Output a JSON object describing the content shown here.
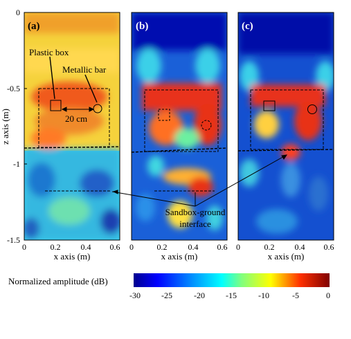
{
  "panels": [
    {
      "label": "(a)",
      "xticks": [
        "0",
        "0.2",
        "0.4",
        "0.6"
      ],
      "xlabel": "x axis (m)"
    },
    {
      "label": "(b)",
      "xticks": [
        "0",
        "0.2",
        "0.4",
        "0.6"
      ],
      "xlabel": "x axis (m)"
    },
    {
      "label": "(c)",
      "xticks": [
        "0",
        "0.2",
        "0.4",
        "0.6"
      ],
      "xlabel": "x axis (m)"
    }
  ],
  "y_axis": {
    "label": "z axis (m)",
    "ticks": [
      "0",
      "-0.5",
      "-1",
      "-1.5"
    ]
  },
  "annotations": {
    "plastic_box": "Plastic box",
    "metallic_bar": "Metallic bar",
    "distance": "20 cm",
    "interface_line1": "Sandbox-ground",
    "interface_line2": "interface"
  },
  "colorbar": {
    "label": "Normalized amplitude (dB)",
    "ticks": [
      "-30",
      "-25",
      "-20",
      "-15",
      "-10",
      "-5",
      "0"
    ],
    "colors": [
      "#00008f",
      "#0050ff",
      "#00c8ff",
      "#7fff7f",
      "#ffdc00",
      "#ff3c00",
      "#800000"
    ]
  }
}
